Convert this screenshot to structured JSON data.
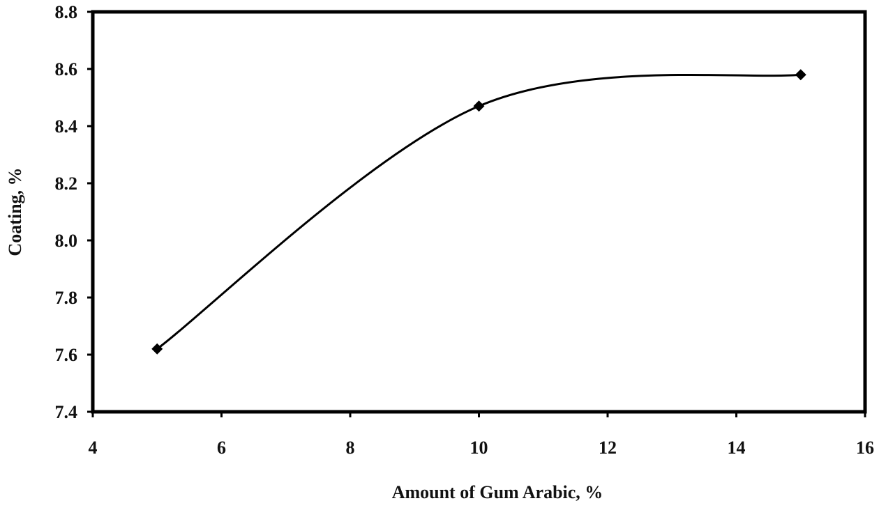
{
  "chart_data": {
    "type": "line",
    "title": "",
    "xlabel": "Amount of Gum Arabic, %",
    "ylabel": "Coating, %",
    "xlim": [
      4,
      16
    ],
    "ylim": [
      7.4,
      8.8
    ],
    "xticks": [
      "4",
      "6",
      "8",
      "10",
      "12",
      "14",
      "16"
    ],
    "yticks": [
      "7.4",
      "7.6",
      "7.8",
      "8.0",
      "8.2",
      "8.4",
      "8.6",
      "8.8"
    ],
    "grid": false,
    "smooth": true,
    "marker": "diamond",
    "line_color": "#000000",
    "series": [
      {
        "x": [
          5,
          10,
          15
        ],
        "y": [
          7.62,
          8.47,
          8.58
        ]
      }
    ]
  }
}
